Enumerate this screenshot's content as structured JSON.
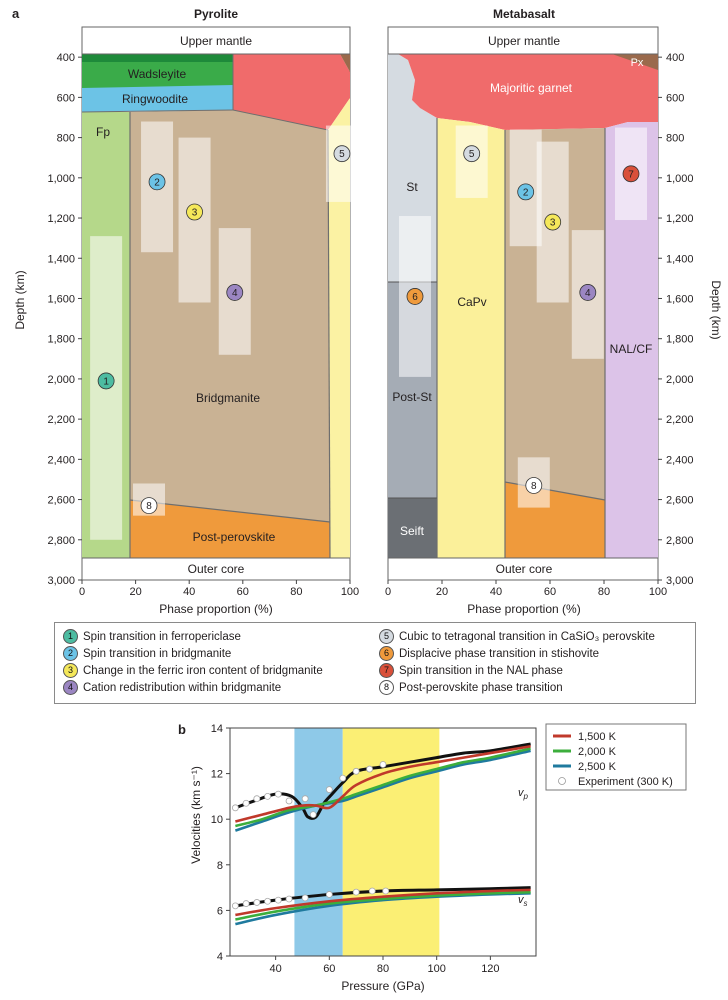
{
  "figure": {
    "panel_a_label": "a",
    "panel_b_label": "b"
  },
  "chart_data": [
    {
      "type": "area",
      "title": "Pyrolite",
      "xlabel": "Phase proportion (%)",
      "ylabel": "Depth (km)",
      "xlim": [
        0,
        100
      ],
      "ylim": [
        3000,
        250
      ],
      "x_ticks": [
        "0",
        "20",
        "40",
        "60",
        "80",
        "100"
      ],
      "y_ticks": [
        "400",
        "600",
        "800",
        "1,000",
        "1,200",
        "1,400",
        "1,600",
        "1,800",
        "2,000",
        "2,200",
        "2,400",
        "2,600",
        "2,800",
        "3,000"
      ],
      "top_label": "Upper mantle",
      "bottom_label": "Outer core",
      "phases": [
        {
          "name": "Wadsleyite",
          "color": "#3aab49",
          "depth_range": [
            400,
            520
          ],
          "fraction_range": [
            0,
            57
          ]
        },
        {
          "name": "Ringwoodite",
          "color": "#6cc3e6",
          "depth_range": [
            520,
            660
          ],
          "fraction_range": [
            0,
            57
          ]
        },
        {
          "name": "",
          "color": "#f06b6b",
          "depth_range": [
            380,
            740
          ],
          "fraction_range": [
            57,
            100
          ]
        },
        {
          "name": "Fp",
          "color": "#b5d88a",
          "depth_range": [
            660,
            2890
          ],
          "fraction_range": [
            0,
            18
          ]
        },
        {
          "name": "Bridgmanite",
          "color": "#c9b294",
          "depth_range": [
            660,
            2700
          ],
          "fraction_range": [
            18,
            92
          ]
        },
        {
          "name": "Post-perovskite",
          "color": "#ef9a3c",
          "depth_range": [
            2620,
            2890
          ],
          "fraction_range": [
            18,
            92
          ]
        },
        {
          "name": "",
          "color": "#fbf2a3",
          "depth_range": [
            720,
            2890
          ],
          "fraction_range": [
            92,
            100
          ]
        }
      ],
      "markers": [
        {
          "id": "1",
          "x": 9,
          "depth": 2010,
          "box": [
            1290,
            2800
          ]
        },
        {
          "id": "2",
          "x": 28,
          "depth": 1020,
          "box": [
            720,
            1370
          ]
        },
        {
          "id": "3",
          "x": 42,
          "depth": 1170,
          "box": [
            800,
            1620
          ]
        },
        {
          "id": "4",
          "x": 57,
          "depth": 1570,
          "box": [
            1250,
            1880
          ]
        },
        {
          "id": "5",
          "x": 97,
          "depth": 880,
          "box": [
            740,
            1120
          ]
        },
        {
          "id": "8",
          "x": 25,
          "depth": 2630,
          "box": [
            2520,
            2680
          ]
        }
      ]
    },
    {
      "type": "area",
      "title": "Metabasalt",
      "xlabel": "Phase proportion (%)",
      "ylabel": "Depth (km)",
      "xlim": [
        0,
        100
      ],
      "ylim": [
        3000,
        250
      ],
      "x_ticks": [
        "0",
        "20",
        "40",
        "60",
        "80",
        "100"
      ],
      "y_ticks": [
        "400",
        "600",
        "800",
        "1,000",
        "1,200",
        "1,400",
        "1,600",
        "1,800",
        "2,000",
        "2,200",
        "2,400",
        "2,600",
        "2,800",
        "3,000"
      ],
      "top_label": "Upper mantle",
      "bottom_label": "Outer core",
      "phases": [
        {
          "name": "Px",
          "color": "#9a6a4c",
          "depth_range": [
            380,
            460
          ],
          "fraction_range": [
            80,
            100
          ]
        },
        {
          "name": "Majoritic garnet",
          "color": "#f06b6b",
          "depth_range": [
            380,
            760
          ],
          "fraction_range": [
            10,
            100
          ]
        },
        {
          "name": "St",
          "color": "#d5dbe1",
          "depth_range": [
            500,
            1510
          ],
          "fraction_range": [
            0,
            18
          ]
        },
        {
          "name": "Post-St",
          "color": "#a5acb5",
          "depth_range": [
            1510,
            2600
          ],
          "fraction_range": [
            0,
            18
          ]
        },
        {
          "name": "Seift",
          "color": "#6b6f74",
          "depth_range": [
            2600,
            2890
          ],
          "fraction_range": [
            0,
            18
          ]
        },
        {
          "name": "CaPv",
          "color": "#fbf09a",
          "depth_range": [
            700,
            2890
          ],
          "fraction_range": [
            18,
            44
          ]
        },
        {
          "name": "",
          "color": "#c9b294",
          "depth_range": [
            740,
            2600
          ],
          "fraction_range": [
            44,
            80
          ]
        },
        {
          "name": "",
          "color": "#ef9a3c",
          "depth_range": [
            2510,
            2890
          ],
          "fraction_range": [
            44,
            80
          ]
        },
        {
          "name": "NAL/CF",
          "color": "#dcc3e8",
          "depth_range": [
            720,
            2890
          ],
          "fraction_range": [
            80,
            100
          ]
        }
      ],
      "markers": [
        {
          "id": "5",
          "x": 31,
          "depth": 880,
          "box": [
            740,
            1100
          ]
        },
        {
          "id": "2",
          "x": 51,
          "depth": 1070,
          "box": [
            760,
            1340
          ]
        },
        {
          "id": "3",
          "x": 61,
          "depth": 1220,
          "box": [
            820,
            1620
          ]
        },
        {
          "id": "4",
          "x": 74,
          "depth": 1570,
          "box": [
            1260,
            1900
          ]
        },
        {
          "id": "6",
          "x": 10,
          "depth": 1590,
          "box": [
            1190,
            1990
          ]
        },
        {
          "id": "7",
          "x": 90,
          "depth": 980,
          "box": [
            750,
            1210
          ]
        },
        {
          "id": "8",
          "x": 54,
          "depth": 2530,
          "box": [
            2390,
            2640
          ]
        }
      ]
    },
    {
      "type": "line",
      "title": "",
      "xlabel": "Pressure (GPa)",
      "ylabel": "Velocities (km s⁻¹)",
      "xlim": [
        23,
        137
      ],
      "ylim": [
        4,
        14
      ],
      "x_ticks": [
        "40",
        "60",
        "80",
        "100",
        "120"
      ],
      "y_ticks": [
        "4",
        "6",
        "8",
        "10",
        "12",
        "14"
      ],
      "bands": [
        {
          "range": [
            47,
            65
          ],
          "color": "#8ec9e8"
        },
        {
          "range": [
            65,
            101
          ],
          "color": "#fbef74"
        }
      ],
      "curve_labels": [
        "v",
        "v"
      ],
      "curve_label_subs": [
        "p",
        "s"
      ],
      "series": [
        {
          "name": "1,500 K",
          "color": "#c0392b",
          "vp_x": [
            25,
            35,
            45,
            50,
            55,
            60,
            65,
            70,
            80,
            90,
            100,
            110,
            120,
            135
          ],
          "vp": [
            9.9,
            10.2,
            10.5,
            10.6,
            10.6,
            10.5,
            11.0,
            11.5,
            12.0,
            12.3,
            12.5,
            12.7,
            12.9,
            13.2
          ],
          "vs_x": [
            25,
            40,
            60,
            80,
            100,
            120,
            135
          ],
          "vs": [
            5.8,
            6.1,
            6.4,
            6.6,
            6.75,
            6.85,
            6.9
          ]
        },
        {
          "name": "2,000 K",
          "color": "#3cae3c",
          "vp_x": [
            25,
            35,
            45,
            55,
            65,
            70,
            80,
            90,
            100,
            110,
            120,
            135
          ],
          "vp": [
            9.7,
            10.0,
            10.4,
            10.6,
            10.9,
            11.1,
            11.5,
            11.9,
            12.2,
            12.5,
            12.7,
            13.1
          ],
          "vs_x": [
            25,
            40,
            60,
            80,
            100,
            120,
            135
          ],
          "vs": [
            5.6,
            5.95,
            6.3,
            6.5,
            6.65,
            6.75,
            6.8
          ]
        },
        {
          "name": "2,500 K",
          "color": "#1f7a9e",
          "vp_x": [
            25,
            35,
            45,
            55,
            65,
            70,
            80,
            90,
            100,
            110,
            120,
            135
          ],
          "vp": [
            9.5,
            9.9,
            10.3,
            10.6,
            10.8,
            11.0,
            11.4,
            11.8,
            12.1,
            12.4,
            12.6,
            13.0
          ],
          "vs_x": [
            25,
            40,
            60,
            80,
            100,
            120,
            135
          ],
          "vs": [
            5.4,
            5.8,
            6.2,
            6.45,
            6.6,
            6.7,
            6.75
          ]
        },
        {
          "name": "Experiment (300 K)",
          "color": "#111111",
          "vp_x": [
            25,
            32,
            40,
            46,
            50,
            52,
            55,
            58,
            61,
            65,
            70,
            80,
            90,
            100,
            110,
            120,
            135
          ],
          "vp": [
            10.5,
            10.8,
            11.1,
            11.0,
            10.5,
            10.1,
            10.1,
            10.7,
            11.1,
            11.6,
            12.1,
            12.3,
            12.5,
            12.7,
            12.9,
            13.0,
            13.3
          ],
          "vs_x": [
            25,
            40,
            60,
            80,
            100,
            120,
            135
          ],
          "vs": [
            6.2,
            6.45,
            6.7,
            6.85,
            6.9,
            6.95,
            7.0
          ],
          "points_vp_x": [
            25,
            29,
            33,
            37,
            41,
            45,
            51,
            54,
            60,
            65,
            70,
            75,
            80
          ],
          "points_vp": [
            10.5,
            10.7,
            10.9,
            11.0,
            11.1,
            10.8,
            10.9,
            10.2,
            11.3,
            11.8,
            12.1,
            12.2,
            12.4
          ],
          "points_vs_x": [
            25,
            29,
            33,
            37,
            41,
            45,
            51,
            60,
            70,
            76,
            81
          ],
          "points_vs": [
            6.2,
            6.3,
            6.35,
            6.4,
            6.45,
            6.5,
            6.55,
            6.7,
            6.8,
            6.85,
            6.85
          ]
        }
      ]
    }
  ],
  "legend_a": [
    {
      "id": "1",
      "color": "#4dbca1",
      "text": "Spin transition in ferropericlase"
    },
    {
      "id": "2",
      "color": "#6cc3e6",
      "text": "Spin transition in bridgmanite"
    },
    {
      "id": "3",
      "color": "#f5e85a",
      "text": "Change in the ferric iron content of bridgmanite"
    },
    {
      "id": "4",
      "color": "#9b86c2",
      "text": "Cation redistribution within bridgmanite"
    },
    {
      "id": "5",
      "color": "#d5dbe1",
      "text": "Cubic to tetragonal transition in CaSiO₃ perovskite"
    },
    {
      "id": "6",
      "color": "#ef9a3c",
      "text": "Displacive phase transition in stishovite"
    },
    {
      "id": "7",
      "color": "#d9503a",
      "text": "Spin transition in the NAL phase"
    },
    {
      "id": "8",
      "color": "#ffffff",
      "text": "Post-perovskite phase transition"
    }
  ]
}
